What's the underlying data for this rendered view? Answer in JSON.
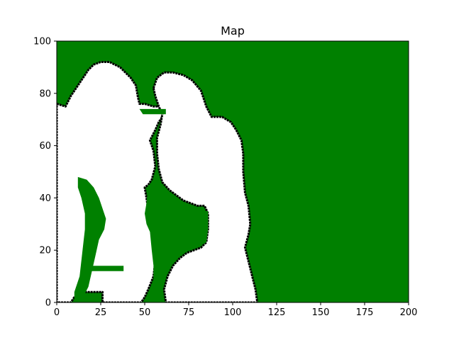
{
  "chart_data": {
    "type": "heatmap",
    "title": "Map",
    "xlabel": "",
    "ylabel": "",
    "xlim": [
      0,
      200
    ],
    "ylim": [
      0,
      100
    ],
    "x_ticks": [
      0,
      25,
      50,
      75,
      100,
      125,
      150,
      175,
      200
    ],
    "y_ticks": [
      0,
      20,
      40,
      60,
      80,
      100
    ],
    "grid": false,
    "legend": "none",
    "colors": {
      "free": "#008000",
      "occupied": "#ffffff",
      "boundary": "#000000"
    },
    "regions": [
      {
        "name": "left-figure",
        "class": "occupied",
        "outline": [
          [
            0,
            76
          ],
          [
            5,
            75
          ],
          [
            8,
            79
          ],
          [
            12,
            83
          ],
          [
            15,
            86
          ],
          [
            18,
            89
          ],
          [
            21,
            91
          ],
          [
            25,
            92
          ],
          [
            30,
            92
          ],
          [
            33,
            91
          ],
          [
            36,
            90
          ],
          [
            39,
            88
          ],
          [
            42,
            86
          ],
          [
            45,
            83
          ],
          [
            46,
            79
          ],
          [
            47,
            76
          ],
          [
            50,
            76
          ],
          [
            55,
            75
          ],
          [
            60,
            75
          ],
          [
            62,
            73
          ],
          [
            60,
            71
          ],
          [
            58,
            69
          ],
          [
            56,
            66
          ],
          [
            53,
            62
          ],
          [
            55,
            58
          ],
          [
            56,
            52
          ],
          [
            54,
            47
          ],
          [
            52,
            45
          ],
          [
            50,
            44
          ],
          [
            51,
            40
          ],
          [
            52,
            35
          ],
          [
            54,
            30
          ],
          [
            55,
            25
          ],
          [
            56,
            20
          ],
          [
            56,
            16
          ],
          [
            55,
            10
          ],
          [
            52,
            5
          ],
          [
            50,
            2
          ],
          [
            48,
            0
          ],
          [
            26,
            0
          ],
          [
            26,
            4
          ],
          [
            20,
            4
          ],
          [
            14,
            4
          ],
          [
            10,
            2
          ],
          [
            8,
            0
          ],
          [
            0,
            0
          ]
        ]
      },
      {
        "name": "right-figure",
        "class": "occupied",
        "outline": [
          [
            55,
            82
          ],
          [
            57,
            86
          ],
          [
            61,
            88
          ],
          [
            66,
            88
          ],
          [
            72,
            87
          ],
          [
            77,
            85
          ],
          [
            82,
            81
          ],
          [
            85,
            75
          ],
          [
            88,
            71
          ],
          [
            94,
            71
          ],
          [
            99,
            69
          ],
          [
            102,
            66
          ],
          [
            105,
            62
          ],
          [
            106,
            57
          ],
          [
            106,
            50
          ],
          [
            107,
            42
          ],
          [
            109,
            37
          ],
          [
            110,
            30
          ],
          [
            109,
            26
          ],
          [
            107,
            21
          ],
          [
            110,
            13
          ],
          [
            113,
            5
          ],
          [
            114,
            0
          ],
          [
            62,
            0
          ],
          [
            61,
            5
          ],
          [
            63,
            10
          ],
          [
            66,
            14
          ],
          [
            70,
            17
          ],
          [
            74,
            19
          ],
          [
            78,
            20
          ],
          [
            82,
            21
          ],
          [
            85,
            23
          ],
          [
            86,
            28
          ],
          [
            86,
            34
          ],
          [
            84,
            37
          ],
          [
            80,
            37
          ],
          [
            76,
            38
          ],
          [
            72,
            39
          ],
          [
            68,
            41
          ],
          [
            64,
            43
          ],
          [
            60,
            46
          ],
          [
            58,
            51
          ],
          [
            57,
            57
          ],
          [
            57,
            63
          ],
          [
            59,
            68
          ],
          [
            60,
            72
          ],
          [
            58,
            75
          ],
          [
            56,
            79
          ]
        ]
      },
      {
        "name": "free-pocket-center",
        "class": "free",
        "outline": [
          [
            52,
            45
          ],
          [
            57,
            45
          ],
          [
            58,
            42
          ],
          [
            63,
            40
          ],
          [
            68,
            38
          ],
          [
            74,
            36
          ],
          [
            80,
            35
          ],
          [
            86,
            35
          ],
          [
            86,
            28
          ],
          [
            85,
            23
          ],
          [
            80,
            21
          ],
          [
            74,
            20
          ],
          [
            68,
            18
          ],
          [
            64,
            14
          ],
          [
            60,
            10
          ],
          [
            59,
            5
          ],
          [
            60,
            2
          ],
          [
            56,
            2
          ],
          [
            55,
            8
          ],
          [
            55,
            14
          ],
          [
            54,
            20
          ],
          [
            53,
            27
          ],
          [
            51,
            30
          ],
          [
            50,
            34
          ],
          [
            51,
            38
          ]
        ]
      },
      {
        "name": "free-pocket-left",
        "class": "free",
        "outline": [
          [
            12,
            48
          ],
          [
            17,
            47
          ],
          [
            21,
            44
          ],
          [
            24,
            40
          ],
          [
            26,
            36
          ],
          [
            28,
            32
          ],
          [
            27,
            28
          ],
          [
            24,
            24
          ],
          [
            22,
            18
          ],
          [
            20,
            12
          ],
          [
            18,
            6
          ],
          [
            15,
            2
          ],
          [
            10,
            0
          ],
          [
            10,
            4
          ],
          [
            13,
            10
          ],
          [
            14,
            16
          ],
          [
            15,
            22
          ],
          [
            16,
            28
          ],
          [
            16,
            34
          ],
          [
            14,
            40
          ],
          [
            12,
            44
          ]
        ]
      },
      {
        "name": "free-strip-top",
        "class": "free",
        "outline": [
          [
            47,
            74
          ],
          [
            62,
            74
          ],
          [
            62,
            72
          ],
          [
            49,
            72
          ]
        ]
      },
      {
        "name": "free-strip-bottom",
        "class": "free",
        "outline": [
          [
            19,
            14
          ],
          [
            38,
            14
          ],
          [
            38,
            12
          ],
          [
            19,
            12
          ]
        ]
      }
    ]
  }
}
